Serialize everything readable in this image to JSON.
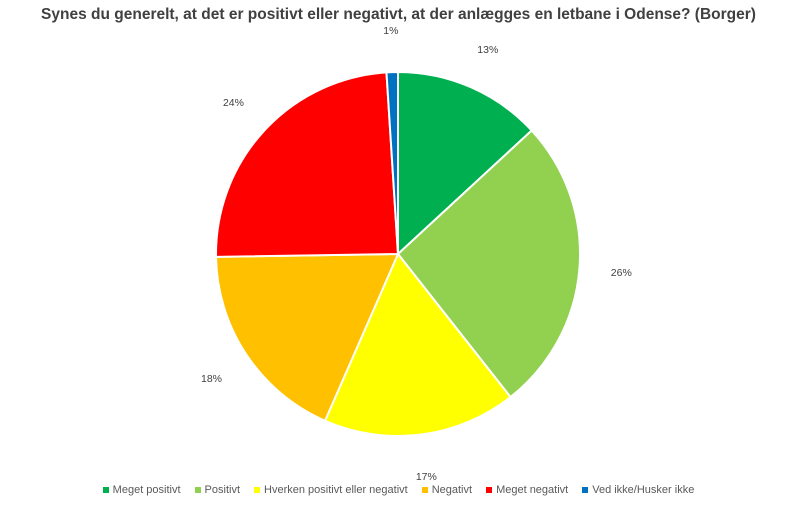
{
  "chart_data": {
    "type": "pie",
    "title": "Synes du generelt, at det er positivt eller negativt, at der anlægges en letbane i Odense? (Borger)",
    "legend_position": "bottom",
    "slices": [
      {
        "name": "Meget positivt",
        "value": 13,
        "label": "13%",
        "color": "#00B050"
      },
      {
        "name": "Positivt",
        "value": 26,
        "label": "26%",
        "color": "#92D050"
      },
      {
        "name": "Hverken positivt eller negativt",
        "value": 17,
        "label": "17%",
        "color": "#FFFF00"
      },
      {
        "name": "Negativt",
        "value": 18,
        "label": "18%",
        "color": "#FFC000"
      },
      {
        "name": "Meget negativt",
        "value": 24,
        "label": "24%",
        "color": "#FF0000"
      },
      {
        "name": "Ved ikke/Husker ikke",
        "value": 1,
        "label": "1%",
        "color": "#0070C0"
      }
    ]
  }
}
